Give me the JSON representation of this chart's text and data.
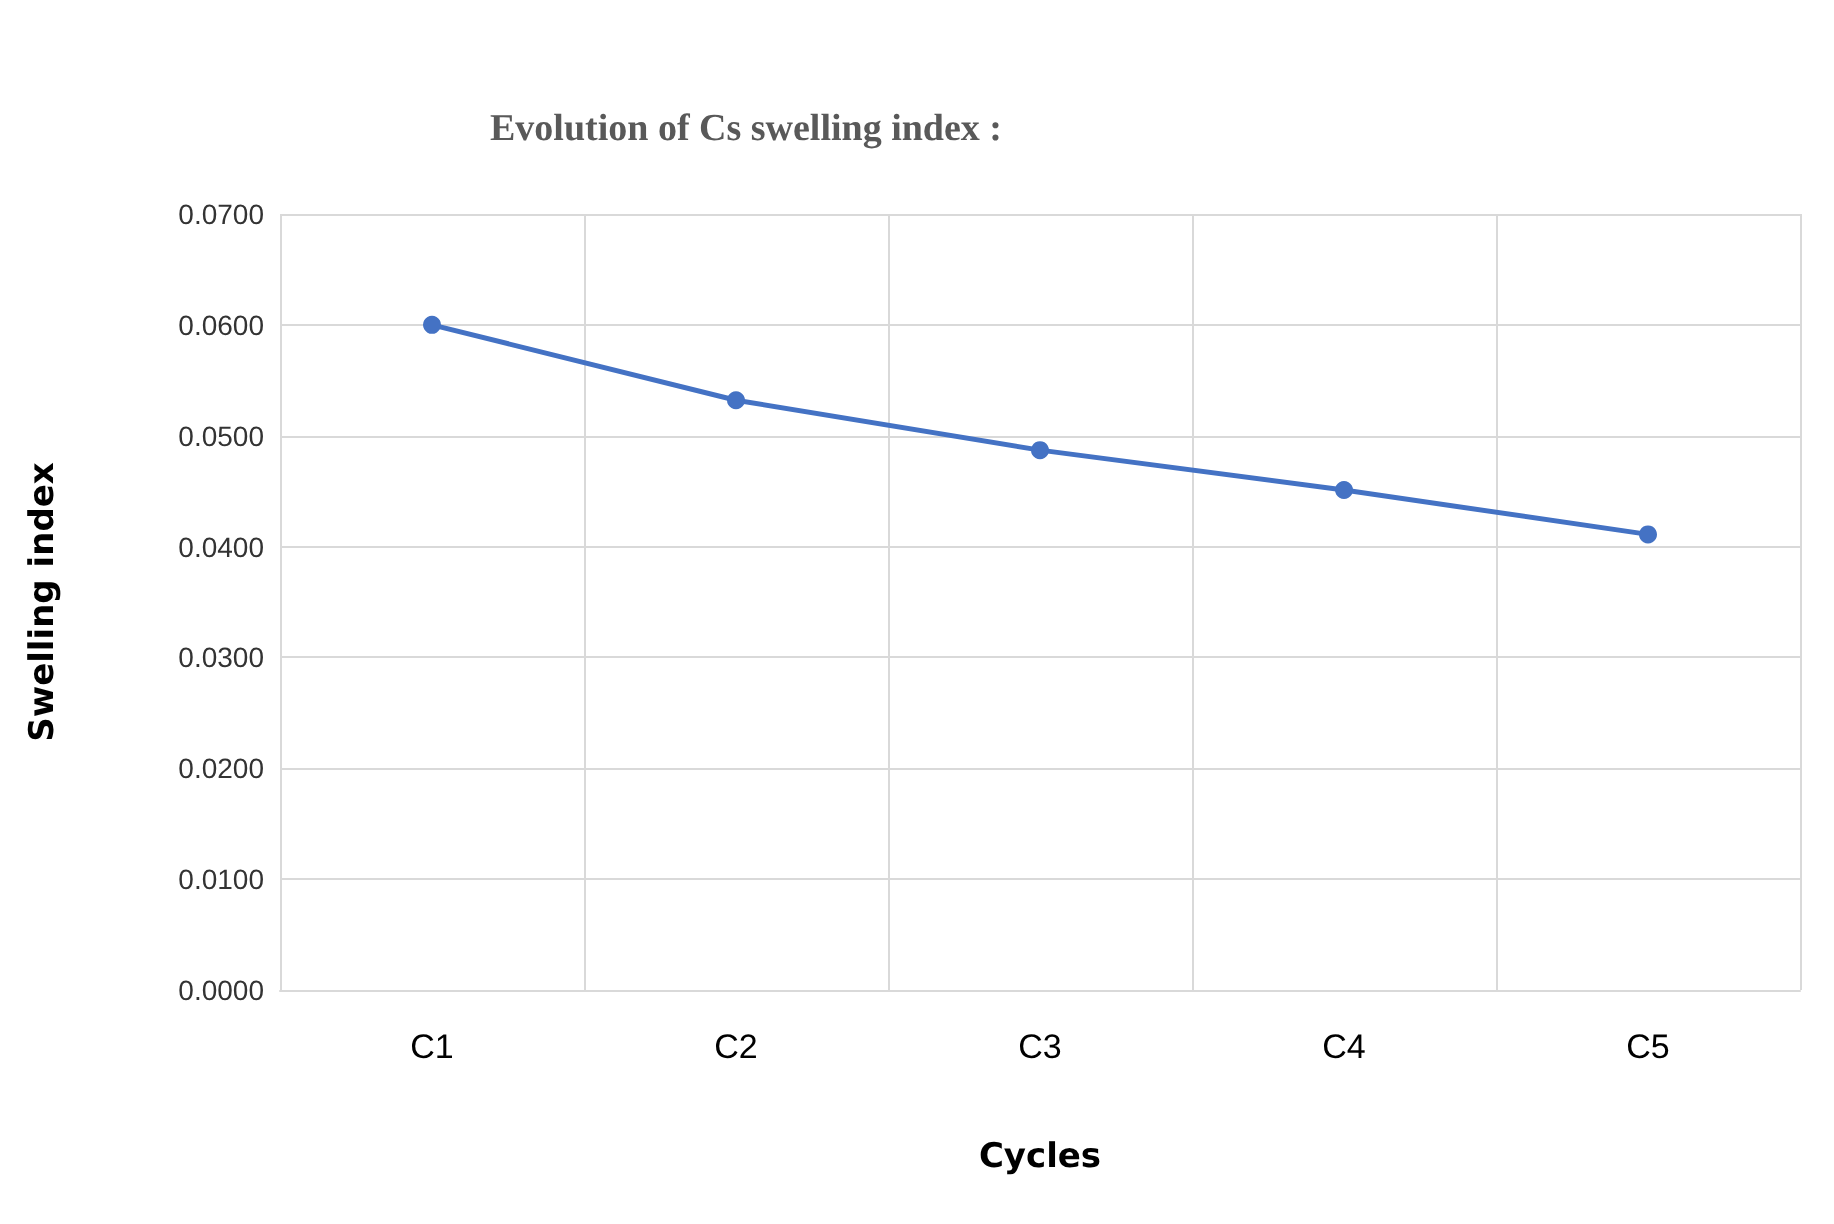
{
  "chart_data": {
    "type": "line",
    "title": "Evolution of Cs swelling index :",
    "xlabel": "Cycles",
    "ylabel": "Swelling index",
    "categories": [
      "C1",
      "C2",
      "C3",
      "C4",
      "C5"
    ],
    "series": [
      {
        "color": "#4472c4",
        "values": [
          0.06,
          0.0532,
          0.0487,
          0.0451,
          0.0411
        ]
      }
    ],
    "ylim": [
      0,
      0.07
    ],
    "yticks": [
      {
        "value": 0,
        "label": "0.0000"
      },
      {
        "value": 0.01,
        "label": "0.0100"
      },
      {
        "value": 0.02,
        "label": "0.0200"
      },
      {
        "value": 0.03,
        "label": "0.0300"
      },
      {
        "value": 0.04,
        "label": "0.0400"
      },
      {
        "value": 0.05,
        "label": "0.0500"
      },
      {
        "value": 0.06,
        "label": "0.0600"
      },
      {
        "value": 0.07,
        "label": "0.0700"
      }
    ],
    "grid": true,
    "marker": "circle",
    "line_style": "solid"
  }
}
